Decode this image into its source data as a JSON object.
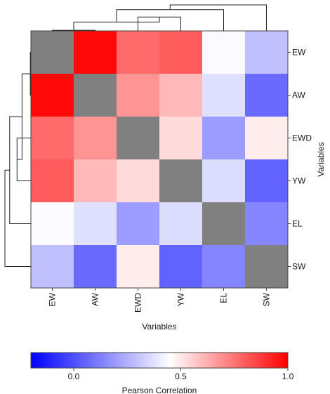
{
  "chart_data": {
    "type": "heatmap",
    "variables": [
      "EW",
      "AW",
      "EWD",
      "YW",
      "EL",
      "SW"
    ],
    "matrix": [
      [
        1.0,
        0.98,
        0.77,
        0.8,
        0.44,
        0.29
      ],
      [
        0.98,
        1.0,
        0.68,
        0.6,
        0.37,
        0.07
      ],
      [
        0.77,
        0.68,
        1.0,
        0.53,
        0.2,
        0.49
      ],
      [
        0.8,
        0.6,
        0.53,
        1.0,
        0.36,
        0.05
      ],
      [
        0.44,
        0.37,
        0.2,
        0.36,
        1.0,
        0.14
      ],
      [
        0.29,
        0.07,
        0.49,
        0.05,
        0.14,
        1.0
      ]
    ],
    "diagonal_color": "#808080",
    "xlabel": "Variables",
    "ylabel": "Variables",
    "colorbar": {
      "label": "Pearson Correlation",
      "min": -0.2,
      "max": 1.0,
      "ticks": [
        0.0,
        0.5,
        1.0
      ],
      "tick_labels": [
        "0.0",
        "0.5",
        "1.0"
      ],
      "low_color": "#0000ff",
      "mid_color": "#ffffff",
      "high_color": "#ff0000",
      "mid_value": 0.45
    },
    "dendrogram": {
      "leaf_order": [
        "EW",
        "AW",
        "EWD",
        "YW",
        "EL",
        "SW"
      ],
      "merges": [
        [
          0,
          1,
          0.02
        ],
        [
          2,
          3,
          0.47
        ],
        [
          6,
          7,
          0.3
        ],
        [
          8,
          4,
          0.72
        ],
        [
          9,
          5,
          0.88
        ]
      ]
    }
  }
}
